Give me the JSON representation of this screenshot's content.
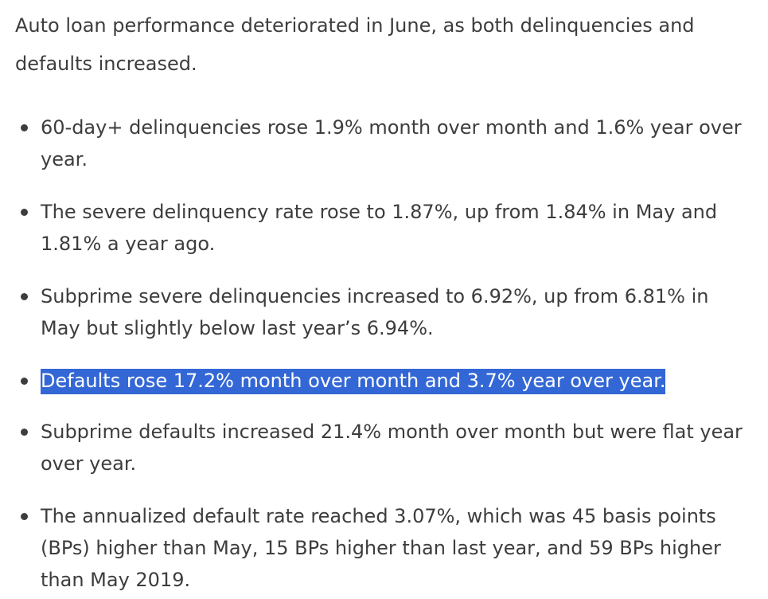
{
  "article": {
    "intro": "Auto loan performance deteriorated in June, as both delinquencies and defaults increased.",
    "bullets": [
      {
        "text": "60-day+ delinquencies rose 1.9% month over month and 1.6% year over year.",
        "highlighted": false
      },
      {
        "text": "The severe delinquency rate rose to 1.87%, up from 1.84% in May and 1.81% a year ago.",
        "highlighted": false
      },
      {
        "text": "Subprime severe delinquencies increased to 6.92%, up from 6.81% in May but slightly below last year’s 6.94%.",
        "highlighted": false
      },
      {
        "text": "Defaults rose 17.2% month over month and 3.7% year over year.",
        "highlighted": true
      },
      {
        "text": "Subprime defaults increased 21.4% month over month but were flat year over year.",
        "highlighted": false
      },
      {
        "text": "The annualized default rate reached 3.07%, which was 45 basis points (BPs) higher than May, 15 BPs higher than last year, and 59 BPs higher than May 2019.",
        "highlighted": false
      }
    ]
  },
  "colors": {
    "text": "#3d3d3d",
    "selection_background": "#3367d6",
    "selection_text": "#ffffff",
    "page_background": "#ffffff"
  }
}
